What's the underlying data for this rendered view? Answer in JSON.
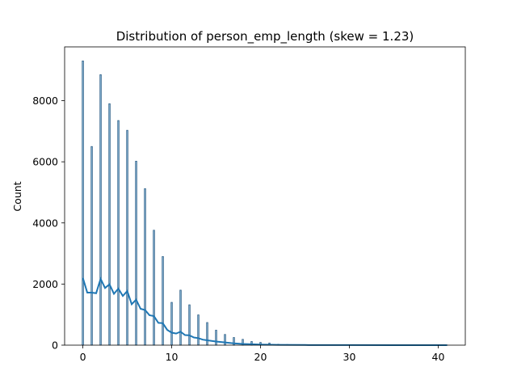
{
  "chart_data": {
    "type": "bar",
    "title": "Distribution of person_emp_length (skew = 1.23)",
    "xlabel": "",
    "ylabel": "Count",
    "xlim": [
      -2.05,
      43.05
    ],
    "ylim": [
      0,
      9760
    ],
    "xticks": [
      0,
      10,
      20,
      30,
      40
    ],
    "yticks": [
      0,
      2000,
      4000,
      6000,
      8000
    ],
    "grid": false,
    "bar_color": "#1f77b4",
    "series": [
      {
        "name": "",
        "x": [
          0,
          1,
          2,
          3,
          4,
          5,
          6,
          7,
          8,
          9,
          10,
          11,
          12,
          13,
          14,
          15,
          16,
          17,
          18,
          19,
          20,
          21,
          22,
          23,
          24,
          25,
          26,
          27,
          28,
          29,
          30,
          31,
          38,
          41
        ],
        "values": [
          9300,
          6500,
          8850,
          7900,
          7350,
          7030,
          6020,
          5120,
          3760,
          2900,
          1400,
          1800,
          1320,
          990,
          740,
          490,
          350,
          250,
          190,
          120,
          90,
          70,
          30,
          20,
          15,
          10,
          8,
          6,
          5,
          4,
          3,
          2,
          1,
          2
        ]
      }
    ],
    "kde": {
      "name": "",
      "x": [
        0,
        0.5,
        1,
        1.5,
        2,
        2.5,
        3,
        3.5,
        4,
        4.5,
        5,
        5.5,
        6,
        6.5,
        7,
        7.5,
        8,
        8.5,
        9,
        9.5,
        10,
        10.5,
        11,
        11.5,
        12,
        12.5,
        13,
        13.5,
        14,
        15,
        16,
        17,
        18,
        19,
        20,
        22,
        25,
        30,
        35,
        41
      ],
      "values": [
        2200,
        1720,
        1720,
        1700,
        2170,
        1870,
        1990,
        1680,
        1850,
        1610,
        1770,
        1340,
        1490,
        1190,
        1150,
        980,
        950,
        730,
        720,
        500,
        410,
        380,
        440,
        330,
        320,
        250,
        230,
        180,
        160,
        120,
        90,
        60,
        40,
        30,
        20,
        10,
        5,
        2,
        1,
        0
      ]
    }
  }
}
